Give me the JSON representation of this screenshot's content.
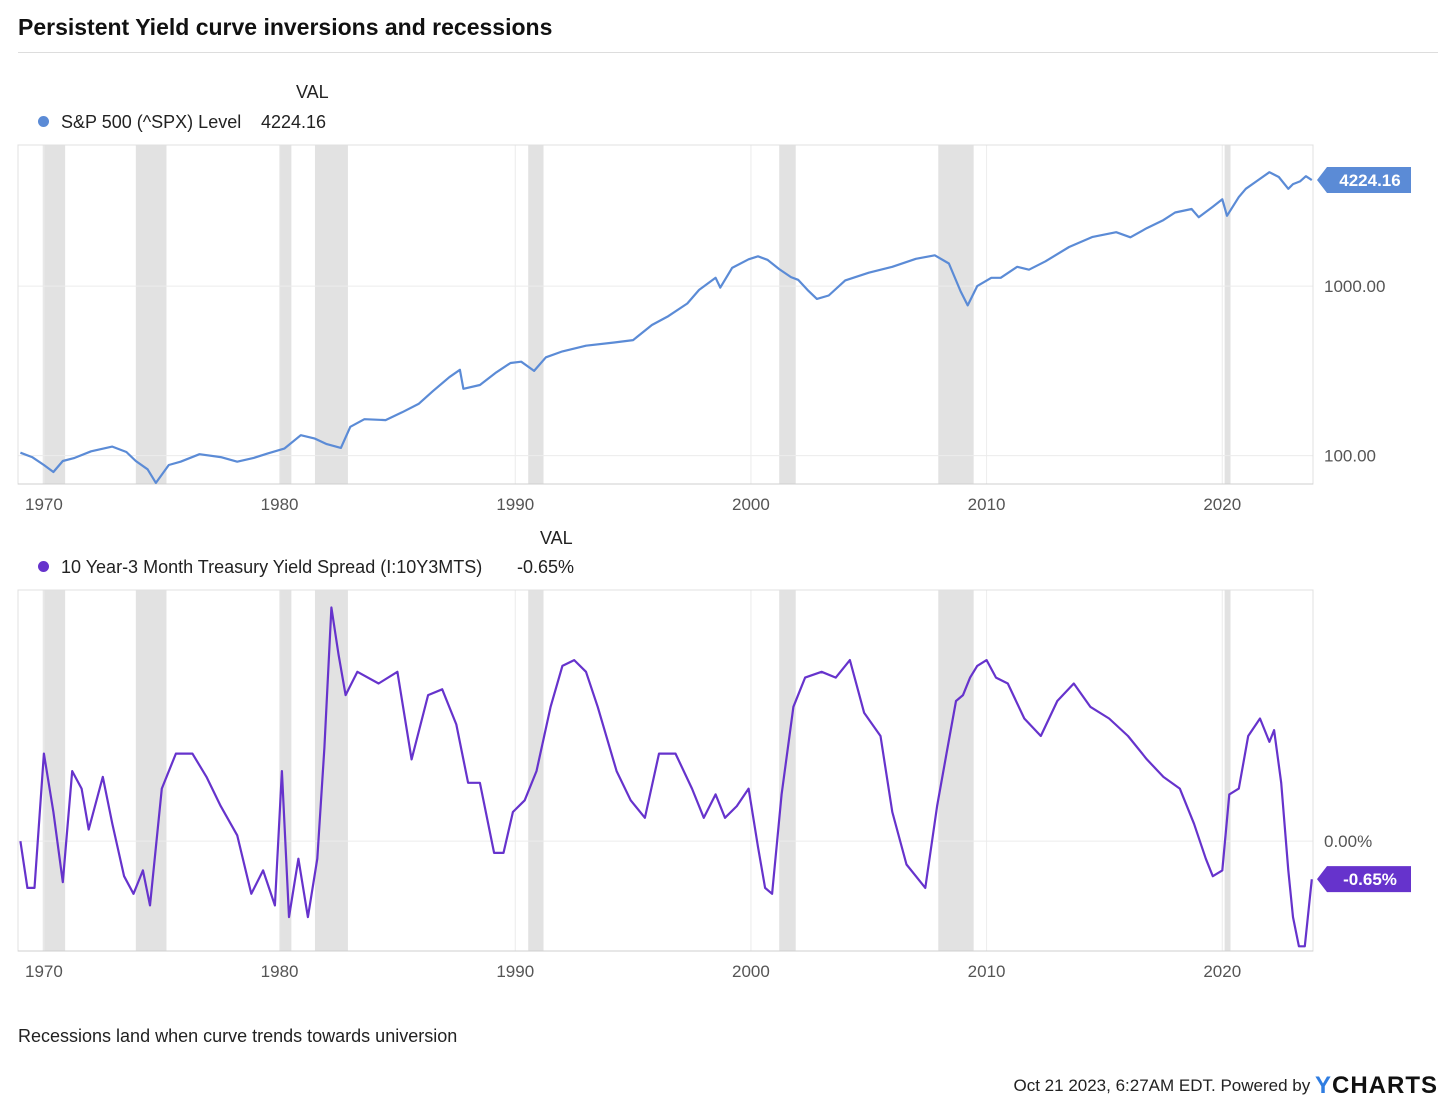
{
  "title": "Persistent Yield curve inversions and recessions",
  "note": "Recessions land when curve trends towards universion",
  "footer": {
    "timestamp": "Oct 21 2023, 6:27AM EDT.",
    "powered_by": "Powered by",
    "brand_y": "Y",
    "brand_rest": "CHARTS"
  },
  "colors": {
    "spx": "#5b8bd6",
    "spread": "#6633cc",
    "recession": "#e2e2e2",
    "grid": "#ececec"
  },
  "chart_data": [
    {
      "type": "line",
      "legend_header": "VAL",
      "series": [
        {
          "name": "S&P 500 (^SPX) Level",
          "value_label": "4224.16",
          "end_label": "4224.16"
        }
      ],
      "xlim": [
        1968.9,
        2023.85
      ],
      "x_ticks": [
        "1970",
        "1980",
        "1990",
        "2000",
        "2010",
        "2020"
      ],
      "y_scale": "log",
      "ylim": [
        68,
        6800
      ],
      "y_ticks": [
        {
          "value": 100,
          "label": "100.00"
        },
        {
          "value": 1000,
          "label": "1000.00"
        }
      ],
      "x": [
        1969.0,
        1969.5,
        1970.0,
        1970.4,
        1970.8,
        1971.3,
        1972.0,
        1972.9,
        1973.5,
        1973.9,
        1974.4,
        1974.75,
        1975.3,
        1975.8,
        1976.6,
        1977.5,
        1978.2,
        1978.9,
        1979.5,
        1980.2,
        1980.9,
        1981.5,
        1982.0,
        1982.6,
        1983.0,
        1983.6,
        1984.5,
        1985.2,
        1985.9,
        1986.5,
        1987.2,
        1987.65,
        1987.8,
        1988.5,
        1989.2,
        1989.8,
        1990.25,
        1990.8,
        1991.3,
        1992.0,
        1993.0,
        1994.2,
        1995.0,
        1995.8,
        1996.5,
        1997.3,
        1997.8,
        1998.5,
        1998.7,
        1999.2,
        1999.9,
        2000.3,
        2000.7,
        2001.2,
        2001.7,
        2002.0,
        2002.4,
        2002.8,
        2003.3,
        2004.0,
        2005.0,
        2006.0,
        2007.0,
        2007.8,
        2008.4,
        2008.9,
        2009.2,
        2009.6,
        2010.2,
        2010.6,
        2011.3,
        2011.8,
        2012.5,
        2013.5,
        2014.5,
        2015.5,
        2016.1,
        2016.8,
        2017.5,
        2018.0,
        2018.7,
        2019.0,
        2019.6,
        2020.0,
        2020.2,
        2020.7,
        2021.0,
        2021.5,
        2022.0,
        2022.4,
        2022.8,
        2023.0,
        2023.3,
        2023.55,
        2023.8
      ],
      "y": [
        104,
        98,
        88,
        80,
        93,
        97,
        106,
        113,
        105,
        93,
        83,
        69,
        88,
        92,
        102,
        98,
        92,
        97,
        103,
        110,
        132,
        126,
        117,
        111,
        148,
        164,
        162,
        180,
        202,
        240,
        290,
        321,
        248,
        261,
        310,
        352,
        358,
        316,
        380,
        412,
        445,
        465,
        480,
        590,
        665,
        790,
        950,
        1120,
        980,
        1280,
        1440,
        1500,
        1430,
        1260,
        1130,
        1090,
        950,
        840,
        880,
        1080,
        1200,
        1300,
        1450,
        1520,
        1360,
        930,
        770,
        1000,
        1120,
        1120,
        1300,
        1250,
        1400,
        1700,
        1950,
        2080,
        1940,
        2200,
        2450,
        2720,
        2850,
        2550,
        2940,
        3250,
        2600,
        3350,
        3750,
        4200,
        4700,
        4400,
        3750,
        4000,
        4150,
        4450,
        4224
      ]
    },
    {
      "type": "line",
      "legend_header": "VAL",
      "series": [
        {
          "name": "10 Year-3 Month Treasury Yield Spread (I:10Y3MTS)",
          "value_label": "-0.65%",
          "end_label": "-0.65%"
        }
      ],
      "xlim": [
        1968.9,
        2023.85
      ],
      "x_ticks": [
        "1970",
        "1980",
        "1990",
        "2000",
        "2010",
        "2020"
      ],
      "ylim": [
        -1.88,
        4.3
      ],
      "y_ticks": [
        {
          "value": 0,
          "label": "0.00%"
        }
      ],
      "x": [
        1969.0,
        1969.3,
        1969.6,
        1970.0,
        1970.4,
        1970.8,
        1971.2,
        1971.6,
        1971.9,
        1972.5,
        1972.9,
        1973.4,
        1973.8,
        1974.2,
        1974.5,
        1975.0,
        1975.6,
        1976.3,
        1976.9,
        1977.5,
        1978.2,
        1978.8,
        1979.3,
        1979.8,
        1980.1,
        1980.4,
        1980.8,
        1981.2,
        1981.6,
        1981.9,
        1982.2,
        1982.5,
        1982.8,
        1983.3,
        1984.2,
        1985.0,
        1985.6,
        1986.3,
        1986.9,
        1987.5,
        1988.0,
        1988.5,
        1989.1,
        1989.5,
        1989.9,
        1990.4,
        1990.9,
        1991.5,
        1992.0,
        1992.5,
        1993.0,
        1993.5,
        1994.3,
        1994.9,
        1995.5,
        1996.1,
        1996.8,
        1997.5,
        1998.0,
        1998.5,
        1998.9,
        1999.4,
        1999.9,
        2000.3,
        2000.6,
        2000.9,
        2001.3,
        2001.8,
        2002.3,
        2003.0,
        2003.6,
        2004.2,
        2004.8,
        2005.5,
        2006.0,
        2006.6,
        2007.0,
        2007.4,
        2007.9,
        2008.3,
        2008.7,
        2009.0,
        2009.3,
        2009.6,
        2010.0,
        2010.4,
        2010.9,
        2011.6,
        2012.3,
        2013.0,
        2013.7,
        2014.4,
        2015.2,
        2016.0,
        2016.8,
        2017.5,
        2018.2,
        2018.8,
        2019.3,
        2019.6,
        2020.0,
        2020.3,
        2020.7,
        2021.1,
        2021.6,
        2022.0,
        2022.2,
        2022.5,
        2022.8,
        2023.0,
        2023.25,
        2023.5,
        2023.8
      ],
      "y": [
        0.0,
        -0.8,
        -0.8,
        1.5,
        0.5,
        -0.7,
        1.2,
        0.9,
        0.2,
        1.1,
        0.3,
        -0.6,
        -0.9,
        -0.5,
        -1.1,
        0.9,
        1.5,
        1.5,
        1.1,
        0.6,
        0.1,
        -0.9,
        -0.5,
        -1.1,
        1.2,
        -1.3,
        -0.3,
        -1.3,
        -0.3,
        1.6,
        4.0,
        3.2,
        2.5,
        2.9,
        2.7,
        2.9,
        1.4,
        2.5,
        2.6,
        2.0,
        1.0,
        1.0,
        -0.2,
        -0.2,
        0.5,
        0.7,
        1.2,
        2.3,
        3.0,
        3.1,
        2.9,
        2.3,
        1.2,
        0.7,
        0.4,
        1.5,
        1.5,
        0.9,
        0.4,
        0.8,
        0.4,
        0.6,
        0.9,
        -0.1,
        -0.8,
        -0.9,
        0.8,
        2.3,
        2.8,
        2.9,
        2.8,
        3.1,
        2.2,
        1.8,
        0.5,
        -0.4,
        -0.6,
        -0.8,
        0.6,
        1.5,
        2.4,
        2.5,
        2.8,
        3.0,
        3.1,
        2.8,
        2.7,
        2.1,
        1.8,
        2.4,
        2.7,
        2.3,
        2.1,
        1.8,
        1.4,
        1.1,
        0.9,
        0.3,
        -0.3,
        -0.6,
        -0.5,
        0.8,
        0.9,
        1.8,
        2.1,
        1.7,
        1.9,
        1.0,
        -0.5,
        -1.3,
        -1.8,
        -1.8,
        -0.65
      ]
    }
  ],
  "recessions": [
    [
      1969.95,
      1970.9
    ],
    [
      1973.9,
      1975.2
    ],
    [
      1980.0,
      1980.5
    ],
    [
      1981.5,
      1982.9
    ],
    [
      1990.55,
      1991.2
    ],
    [
      2001.2,
      2001.9
    ],
    [
      2007.95,
      2009.45
    ],
    [
      2020.1,
      2020.35
    ]
  ]
}
